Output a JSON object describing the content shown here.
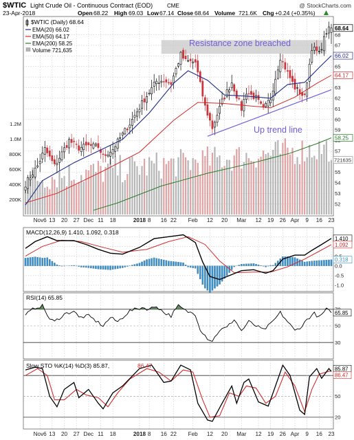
{
  "header": {
    "symbol": "$WTIC",
    "description": "Light Crude Oil - Continuous Contract (EOD)",
    "exchange": "CME",
    "watermark": "@ StockCharts.com",
    "date": "23-Apr-2018",
    "open_label": "Open",
    "open": "68.22",
    "high_label": "High",
    "high": "69.03",
    "low_label": "Low",
    "low": "67.14",
    "close_label": "Close",
    "close": "68.64",
    "volume_label": "Volume",
    "volume": "721.6K",
    "chg_label": "Chg",
    "chg": "+0.24 (+0.35%)"
  },
  "colors": {
    "ema20": "#1f2a8c",
    "ema50": "#d42a2a",
    "ema200": "#2a7a2a",
    "up_candle": "#000000",
    "down_candle": "#c8373d",
    "vol_up": "#b5b5b5",
    "vol_down": "#e0a3a3",
    "macd_hist": "#3a8fc9",
    "resistance": "#c8c8c8",
    "trendline": "#6f5ed8"
  },
  "legend": {
    "main": "$WTIC (Daily) 68.64",
    "ema20": "EMA(20) 66.02",
    "ema50": "EMA(50) 64.17",
    "ema200": "EMA(200) 58.25",
    "volume": "Volume 721,635"
  },
  "annotations": {
    "resistance": "Resistance zone breached",
    "trend": "Up trend line"
  },
  "macd_panel": {
    "title": "MACD(12,26,9) 1.410, 1.092, 0.318"
  },
  "rsi_panel": {
    "title": "RSI(14) 65.85"
  },
  "sto_panel": {
    "title": "Slow STO %K(14) %D(3) 85.87,",
    "d_value": "86.47"
  },
  "chart_data": {
    "type": "candlestick",
    "x_labels": [
      "Nov6",
      "13",
      "20",
      "27",
      "Dec",
      "11",
      "18",
      "2018",
      "8",
      "16",
      "22",
      "Feb",
      "12",
      "20",
      "Mar",
      "12",
      "19",
      "26",
      "Apr",
      "9",
      "16",
      "23"
    ],
    "x_label_dates": [
      "2017-11-06",
      "2017-11-13",
      "2017-11-20",
      "2017-11-27",
      "2017-12-04",
      "2017-12-11",
      "2017-12-18",
      "2018-01-02",
      "2018-01-08",
      "2018-01-16",
      "2018-01-22",
      "2018-02-01",
      "2018-02-12",
      "2018-02-20",
      "2018-03-01",
      "2018-03-12",
      "2018-03-19",
      "2018-03-26",
      "2018-04-02",
      "2018-04-09",
      "2018-04-16",
      "2018-04-23"
    ],
    "price_axis": {
      "ticks": [
        52,
        53,
        54,
        55,
        56,
        57,
        58,
        59,
        60,
        61,
        62,
        63,
        64,
        65,
        66,
        67,
        68
      ],
      "range": [
        51,
        69.6
      ]
    },
    "price_axis_markers": [
      {
        "value": "68.64",
        "tag": "close"
      },
      {
        "value": "66.02",
        "tag": "ema20"
      },
      {
        "value": "64.17",
        "tag": "ema50"
      },
      {
        "value": "58.25",
        "tag": "ema200"
      }
    ],
    "volume_axis": {
      "ticks": [
        "200K",
        "400K",
        "600K",
        "800K",
        "1.0M",
        "1.2M"
      ],
      "values": [
        200000,
        400000,
        600000,
        800000,
        1000000,
        1200000
      ],
      "range": [
        0,
        2600000
      ],
      "last_label": "721635",
      "last": 721635
    },
    "close_path": [
      [
        "2017-10-27",
        53.9
      ],
      [
        "2017-11-03",
        55.6
      ],
      [
        "2017-11-08",
        57.2
      ],
      [
        "2017-11-14",
        55.6
      ],
      [
        "2017-11-22",
        58.0
      ],
      [
        "2017-11-28",
        57.3
      ],
      [
        "2017-12-04",
        57.5
      ],
      [
        "2017-12-08",
        57.4
      ],
      [
        "2017-12-12",
        56.5
      ],
      [
        "2017-12-18",
        57.2
      ],
      [
        "2017-12-27",
        59.6
      ],
      [
        "2018-01-04",
        61.9
      ],
      [
        "2018-01-11",
        63.6
      ],
      [
        "2018-01-16",
        63.7
      ],
      [
        "2018-01-19",
        63.4
      ],
      [
        "2018-01-25",
        66.1
      ],
      [
        "2018-01-29",
        65.5
      ],
      [
        "2018-02-02",
        65.4
      ],
      [
        "2018-02-08",
        61.2
      ],
      [
        "2018-02-13",
        59.2
      ],
      [
        "2018-02-19",
        61.7
      ],
      [
        "2018-02-23",
        63.5
      ],
      [
        "2018-03-01",
        61.0
      ],
      [
        "2018-03-05",
        62.6
      ],
      [
        "2018-03-09",
        62.0
      ],
      [
        "2018-03-14",
        60.9
      ],
      [
        "2018-03-19",
        62.0
      ],
      [
        "2018-03-23",
        65.9
      ],
      [
        "2018-03-28",
        64.4
      ],
      [
        "2018-04-02",
        63.0
      ],
      [
        "2018-04-06",
        62.1
      ],
      [
        "2018-04-11",
        66.8
      ],
      [
        "2018-04-16",
        66.2
      ],
      [
        "2018-04-19",
        68.3
      ],
      [
        "2018-04-23",
        68.64
      ]
    ],
    "ema20_path": [
      [
        "2017-10-27",
        51.9
      ],
      [
        "2017-11-07",
        54.2
      ],
      [
        "2017-11-24",
        55.9
      ],
      [
        "2017-12-08",
        57.0
      ],
      [
        "2017-12-22",
        58.1
      ],
      [
        "2018-01-08",
        60.6
      ],
      [
        "2018-01-22",
        63.4
      ],
      [
        "2018-01-30",
        64.6
      ],
      [
        "2018-02-09",
        63.7
      ],
      [
        "2018-02-20",
        62.3
      ],
      [
        "2018-03-05",
        62.2
      ],
      [
        "2018-03-19",
        62.0
      ],
      [
        "2018-03-28",
        63.3
      ],
      [
        "2018-04-06",
        63.5
      ],
      [
        "2018-04-16",
        64.9
      ],
      [
        "2018-04-23",
        66.02
      ]
    ],
    "ema50_path": [
      [
        "2017-10-27",
        52.1
      ],
      [
        "2017-11-15",
        53.0
      ],
      [
        "2017-12-11",
        55.0
      ],
      [
        "2018-01-02",
        56.9
      ],
      [
        "2018-01-22",
        59.9
      ],
      [
        "2018-02-05",
        61.6
      ],
      [
        "2018-02-20",
        61.5
      ],
      [
        "2018-03-05",
        61.3
      ],
      [
        "2018-03-19",
        61.1
      ],
      [
        "2018-04-02",
        62.1
      ],
      [
        "2018-04-13",
        63.4
      ],
      [
        "2018-04-23",
        64.17
      ]
    ],
    "ema200_path": [
      [
        "2017-12-06",
        51.4
      ],
      [
        "2017-12-20",
        52.1
      ],
      [
        "2018-01-15",
        53.7
      ],
      [
        "2018-02-09",
        54.9
      ],
      [
        "2018-03-08",
        55.9
      ],
      [
        "2018-03-29",
        56.8
      ],
      [
        "2018-04-13",
        57.7
      ],
      [
        "2018-04-23",
        58.25
      ]
    ],
    "resistance_zone": {
      "from": "2018-01-15",
      "to": "2018-04-19",
      "low": 66.2,
      "high": 67.5
    },
    "trend_line": {
      "from": [
        "2018-02-09",
        58.4
      ],
      "to": [
        "2018-04-23",
        62.8
      ]
    },
    "macd": {
      "axis_ticks": [
        -1.0,
        -0.5,
        0.0,
        0.5,
        1.0,
        1.5
      ],
      "range": [
        -1.25,
        1.9
      ],
      "last": {
        "macd": 1.41,
        "signal": 1.092,
        "hist": 0.318
      },
      "macd_path": [
        [
          "2017-10-27",
          0.9
        ],
        [
          "2017-11-02",
          1.25
        ],
        [
          "2017-11-09",
          1.5
        ],
        [
          "2017-11-15",
          1.3
        ],
        [
          "2017-11-24",
          1.3
        ],
        [
          "2017-12-01",
          1.1
        ],
        [
          "2017-12-08",
          0.85
        ],
        [
          "2017-12-15",
          0.65
        ],
        [
          "2017-12-22",
          0.6
        ],
        [
          "2018-01-02",
          0.95
        ],
        [
          "2018-01-10",
          1.4
        ],
        [
          "2018-01-18",
          1.5
        ],
        [
          "2018-01-26",
          1.6
        ],
        [
          "2018-02-02",
          1.2
        ],
        [
          "2018-02-07",
          0.2
        ],
        [
          "2018-02-12",
          -0.55
        ],
        [
          "2018-02-16",
          -0.7
        ],
        [
          "2018-02-23",
          -0.45
        ],
        [
          "2018-03-01",
          -0.25
        ],
        [
          "2018-03-08",
          -0.2
        ],
        [
          "2018-03-15",
          -0.38
        ],
        [
          "2018-03-20",
          -0.25
        ],
        [
          "2018-03-26",
          0.35
        ],
        [
          "2018-04-02",
          0.55
        ],
        [
          "2018-04-06",
          0.55
        ],
        [
          "2018-04-11",
          0.8
        ],
        [
          "2018-04-17",
          1.1
        ],
        [
          "2018-04-23",
          1.41
        ]
      ],
      "signal_path": [
        [
          "2017-10-27",
          0.5
        ],
        [
          "2017-11-07",
          1.0
        ],
        [
          "2017-11-17",
          1.32
        ],
        [
          "2017-11-29",
          1.25
        ],
        [
          "2017-12-12",
          0.95
        ],
        [
          "2017-12-22",
          0.7
        ],
        [
          "2018-01-05",
          0.85
        ],
        [
          "2018-01-18",
          1.25
        ],
        [
          "2018-01-30",
          1.5
        ],
        [
          "2018-02-08",
          1.1
        ],
        [
          "2018-02-16",
          0.25
        ],
        [
          "2018-02-26",
          -0.35
        ],
        [
          "2018-03-08",
          -0.32
        ],
        [
          "2018-03-19",
          -0.32
        ],
        [
          "2018-03-28",
          -0.05
        ],
        [
          "2018-04-06",
          0.35
        ],
        [
          "2018-04-16",
          0.75
        ],
        [
          "2018-04-23",
          1.092
        ]
      ]
    },
    "rsi": {
      "axis_ticks": [
        30,
        50,
        70
      ],
      "range": [
        12,
        88
      ],
      "last": 65.85,
      "path": [
        [
          "2017-10-27",
          63
        ],
        [
          "2017-11-02",
          72
        ],
        [
          "2017-11-07",
          74
        ],
        [
          "2017-11-10",
          58
        ],
        [
          "2017-11-14",
          55
        ],
        [
          "2017-11-20",
          64
        ],
        [
          "2017-11-24",
          68
        ],
        [
          "2017-11-28",
          60
        ],
        [
          "2017-12-04",
          62
        ],
        [
          "2017-12-07",
          56
        ],
        [
          "2017-12-12",
          50
        ],
        [
          "2017-12-15",
          60
        ],
        [
          "2017-12-20",
          55
        ],
        [
          "2017-12-27",
          68
        ],
        [
          "2018-01-03",
          72
        ],
        [
          "2018-01-08",
          70
        ],
        [
          "2018-01-11",
          74
        ],
        [
          "2018-01-16",
          66
        ],
        [
          "2018-01-19",
          62
        ],
        [
          "2018-01-24",
          74
        ],
        [
          "2018-01-29",
          68
        ],
        [
          "2018-02-02",
          64
        ],
        [
          "2018-02-06",
          46
        ],
        [
          "2018-02-09",
          35
        ],
        [
          "2018-02-13",
          32
        ],
        [
          "2018-02-16",
          45
        ],
        [
          "2018-02-21",
          48
        ],
        [
          "2018-02-26",
          58
        ],
        [
          "2018-03-01",
          44
        ],
        [
          "2018-03-06",
          55
        ],
        [
          "2018-03-09",
          50
        ],
        [
          "2018-03-14",
          45
        ],
        [
          "2018-03-19",
          52
        ],
        [
          "2018-03-23",
          66
        ],
        [
          "2018-03-28",
          55
        ],
        [
          "2018-04-02",
          44
        ],
        [
          "2018-04-05",
          50
        ],
        [
          "2018-04-09",
          58
        ],
        [
          "2018-04-12",
          65
        ],
        [
          "2018-04-16",
          60
        ],
        [
          "2018-04-19",
          70
        ],
        [
          "2018-04-23",
          65.85
        ]
      ]
    },
    "stochastic": {
      "axis_ticks": [
        20,
        50,
        80
      ],
      "range": [
        5,
        100
      ],
      "last": {
        "k": 85.87,
        "d": 86.47
      },
      "k_path": [
        [
          "2017-10-27",
          88
        ],
        [
          "2017-11-02",
          92
        ],
        [
          "2017-11-07",
          90
        ],
        [
          "2017-11-10",
          50
        ],
        [
          "2017-11-15",
          35
        ],
        [
          "2017-11-20",
          60
        ],
        [
          "2017-11-24",
          70
        ],
        [
          "2017-11-28",
          48
        ],
        [
          "2017-12-04",
          60
        ],
        [
          "2017-12-08",
          40
        ],
        [
          "2017-12-12",
          32
        ],
        [
          "2017-12-18",
          55
        ],
        [
          "2017-12-22",
          65
        ],
        [
          "2018-01-02",
          90
        ],
        [
          "2018-01-09",
          95
        ],
        [
          "2018-01-16",
          70
        ],
        [
          "2018-01-19",
          72
        ],
        [
          "2018-01-25",
          95
        ],
        [
          "2018-01-31",
          88
        ],
        [
          "2018-02-05",
          40
        ],
        [
          "2018-02-09",
          16
        ],
        [
          "2018-02-13",
          14
        ],
        [
          "2018-02-19",
          40
        ],
        [
          "2018-02-23",
          65
        ],
        [
          "2018-02-27",
          40
        ],
        [
          "2018-03-02",
          70
        ],
        [
          "2018-03-06",
          75
        ],
        [
          "2018-03-12",
          42
        ],
        [
          "2018-03-16",
          36
        ],
        [
          "2018-03-20",
          55
        ],
        [
          "2018-03-26",
          95
        ],
        [
          "2018-03-29",
          80
        ],
        [
          "2018-04-04",
          30
        ],
        [
          "2018-04-06",
          24
        ],
        [
          "2018-04-10",
          78
        ],
        [
          "2018-04-13",
          90
        ],
        [
          "2018-04-17",
          76
        ],
        [
          "2018-04-20",
          90
        ],
        [
          "2018-04-23",
          85.87
        ]
      ],
      "d_path": [
        [
          "2017-10-27",
          80
        ],
        [
          "2017-11-03",
          90
        ],
        [
          "2017-11-09",
          80
        ],
        [
          "2017-11-14",
          45
        ],
        [
          "2017-11-20",
          45
        ],
        [
          "2017-11-27",
          60
        ],
        [
          "2017-12-01",
          52
        ],
        [
          "2017-12-08",
          48
        ],
        [
          "2017-12-14",
          35
        ],
        [
          "2017-12-20",
          55
        ],
        [
          "2017-12-27",
          75
        ],
        [
          "2018-01-05",
          90
        ],
        [
          "2018-01-12",
          85
        ],
        [
          "2018-01-19",
          72
        ],
        [
          "2018-01-26",
          88
        ],
        [
          "2018-02-01",
          85
        ],
        [
          "2018-02-07",
          45
        ],
        [
          "2018-02-12",
          20
        ],
        [
          "2018-02-16",
          22
        ],
        [
          "2018-02-22",
          55
        ],
        [
          "2018-02-28",
          50
        ],
        [
          "2018-03-05",
          65
        ],
        [
          "2018-03-09",
          62
        ],
        [
          "2018-03-15",
          40
        ],
        [
          "2018-03-21",
          50
        ],
        [
          "2018-03-27",
          85
        ],
        [
          "2018-04-02",
          65
        ],
        [
          "2018-04-06",
          28
        ],
        [
          "2018-04-11",
          60
        ],
        [
          "2018-04-16",
          82
        ],
        [
          "2018-04-20",
          86
        ],
        [
          "2018-04-23",
          86.47
        ]
      ]
    }
  }
}
